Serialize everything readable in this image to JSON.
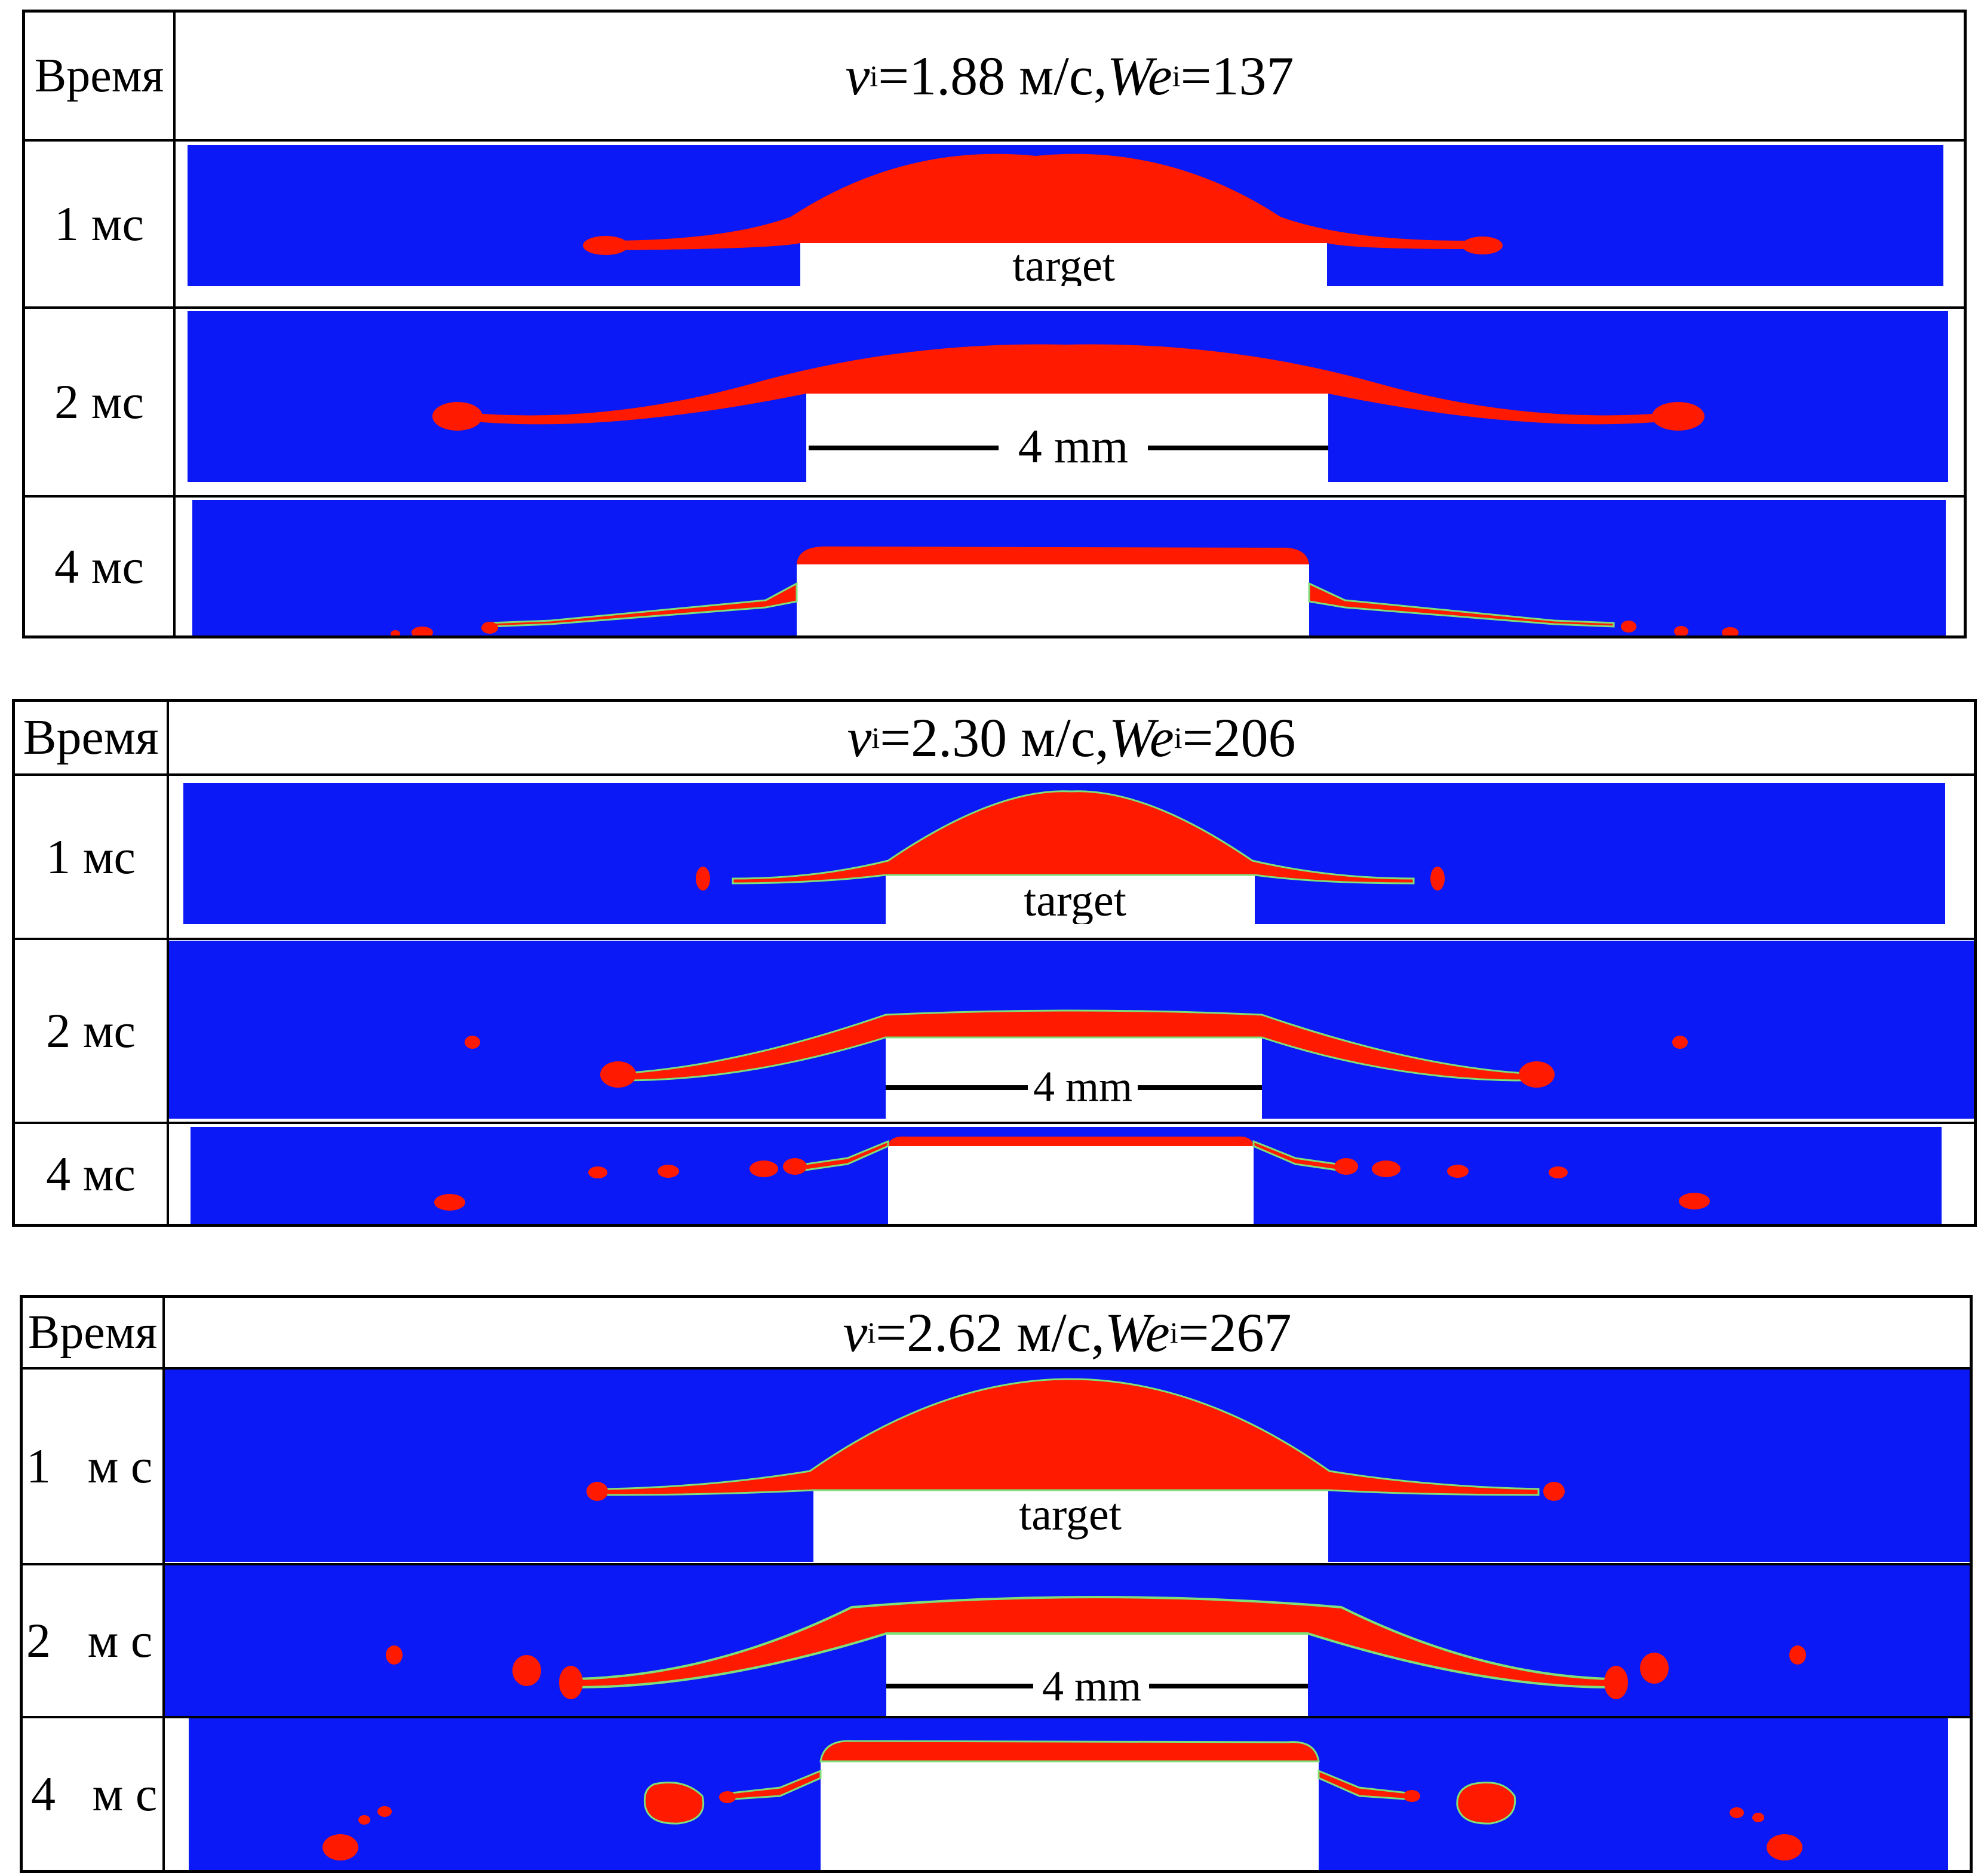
{
  "colors": {
    "background_fluid": "#0a19f5",
    "droplet": "#ff1a00",
    "target": "#ffffff",
    "interface": "#7fe07a"
  },
  "labels": {
    "target": "target",
    "scale": "4 mm"
  },
  "panels": [
    {
      "header_time": "Время",
      "title_v": "v",
      "title_sub": "i",
      "title_v_value": "=1.88 м/с, ",
      "title_we": "We",
      "title_we_value": "=137",
      "rows": [
        {
          "time": "1 мс"
        },
        {
          "time": "2 мс"
        },
        {
          "time": "4 мс"
        }
      ]
    },
    {
      "header_time": "Время",
      "title_v": "v",
      "title_sub": "i",
      "title_v_value": "=2.30 м/с, ",
      "title_we": "We",
      "title_we_value": "=206",
      "rows": [
        {
          "time": "1 мс"
        },
        {
          "time": "2 мс"
        },
        {
          "time": "4 мс"
        }
      ]
    },
    {
      "header_time": "Время",
      "title_v": "v",
      "title_sub": "i",
      "title_v_value": "=2.62 м/с, ",
      "title_we": "We",
      "title_we_value": "=267",
      "rows": [
        {
          "time": "1   м с"
        },
        {
          "time": "2   м с"
        },
        {
          "time": "4   м с"
        }
      ]
    }
  ]
}
